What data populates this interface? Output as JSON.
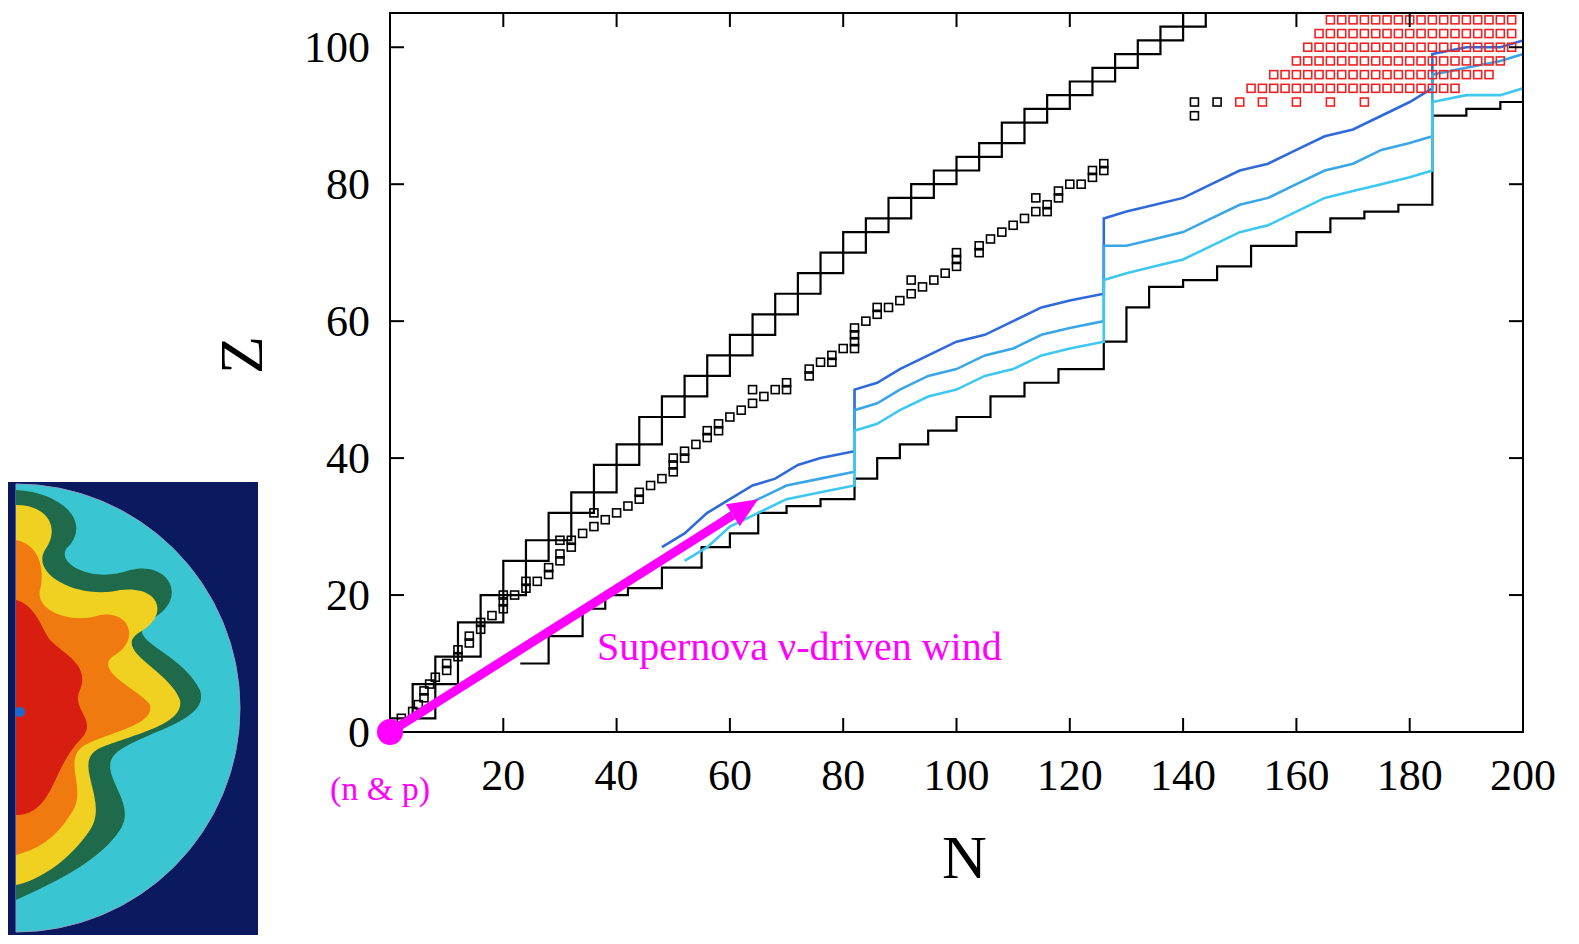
{
  "chart_data": {
    "type": "line",
    "xlabel": "N",
    "ylabel": "Z",
    "xlim": [
      0,
      200
    ],
    "ylim": [
      0,
      105
    ],
    "xticks": [
      20,
      40,
      60,
      80,
      100,
      120,
      140,
      160,
      180,
      200
    ],
    "yticks": [
      0,
      20,
      40,
      60,
      80,
      100
    ],
    "grid": false,
    "annotations": [
      {
        "text": "Supernova ν-driven wind",
        "color": "#ff00ff"
      },
      {
        "text": "(n & p)",
        "color": "#ff00ff"
      }
    ],
    "series": [
      {
        "type": "line",
        "line_style": "steps",
        "color": "#000000",
        "x": [
          0,
          4,
          8,
          12,
          16,
          20,
          24,
          28,
          32,
          36,
          40,
          44,
          48,
          52,
          56,
          60,
          64,
          68,
          72,
          76,
          80,
          84,
          88,
          92,
          96,
          100,
          104,
          108,
          112,
          116,
          120,
          124,
          128,
          132,
          136,
          140
        ],
        "values": [
          2,
          7,
          11,
          16,
          20,
          25,
          28,
          32,
          35,
          39,
          42,
          46,
          49,
          52,
          55,
          58,
          61,
          64,
          67,
          70,
          73,
          75,
          78,
          80,
          82,
          84,
          86,
          89,
          91,
          93,
          95,
          97,
          99,
          101,
          103,
          105
        ]
      },
      {
        "type": "line",
        "line_style": "steps",
        "color": "#000000",
        "x": [
          4,
          8,
          12,
          16,
          20,
          24,
          28,
          32,
          36,
          40,
          44,
          48,
          52,
          56,
          60,
          64,
          68,
          72,
          76,
          80,
          84,
          88,
          92,
          96,
          100,
          104,
          108,
          112,
          116,
          120,
          124,
          128,
          132,
          136,
          140,
          144
        ],
        "values": [
          2,
          7,
          11,
          16,
          20,
          25,
          28,
          32,
          35,
          39,
          42,
          46,
          49,
          52,
          55,
          58,
          61,
          64,
          67,
          70,
          73,
          75,
          78,
          80,
          82,
          84,
          86,
          89,
          91,
          93,
          95,
          97,
          99,
          101,
          103,
          105
        ]
      },
      {
        "type": "line",
        "line_style": "steps",
        "color": "#000000",
        "x": [
          23,
          28,
          34,
          38,
          42,
          48,
          55,
          60,
          65,
          70,
          76,
          82,
          82,
          86,
          90,
          95,
          100,
          106,
          112,
          118,
          126,
          126,
          130,
          134,
          140,
          146,
          152,
          160,
          166,
          172,
          178,
          184,
          184,
          190,
          196,
          200
        ],
        "values": [
          10,
          14,
          18,
          20,
          21,
          24,
          27,
          29,
          32,
          33,
          34,
          35,
          37,
          40,
          42,
          44,
          46,
          49,
          51,
          53,
          55,
          57,
          62,
          65,
          66,
          68,
          71,
          73,
          75,
          76,
          77,
          78,
          90,
          91,
          92,
          93
        ]
      },
      {
        "type": "line",
        "line_style": "solid",
        "color": "#2f6ad8",
        "x": [
          48,
          52,
          56,
          60,
          64,
          68,
          72,
          76,
          82,
          82,
          86,
          90,
          95,
          100,
          105,
          110,
          115,
          120,
          126,
          126,
          130,
          135,
          140,
          145,
          150,
          155,
          160,
          165,
          170,
          175,
          180,
          184,
          184,
          190,
          196,
          200
        ],
        "values": [
          27,
          29,
          32,
          34,
          36,
          37,
          39,
          40,
          41,
          50,
          51,
          53,
          55,
          57,
          58,
          60,
          62,
          63,
          64,
          75,
          76,
          77,
          78,
          80,
          82,
          83,
          85,
          87,
          88,
          90,
          92,
          94,
          99,
          100,
          100,
          101
        ]
      },
      {
        "type": "line",
        "line_style": "solid",
        "color": "#3aa6e6",
        "x": [
          50,
          55,
          60,
          65,
          70,
          76,
          82,
          82,
          86,
          90,
          95,
          100,
          105,
          110,
          115,
          120,
          126,
          126,
          130,
          135,
          140,
          145,
          150,
          155,
          160,
          165,
          170,
          175,
          180,
          184,
          184,
          190,
          196,
          200
        ],
        "values": [
          26,
          29,
          32,
          34,
          36,
          37,
          38,
          47,
          48,
          50,
          52,
          53,
          55,
          56,
          58,
          59,
          60,
          71,
          71,
          72,
          73,
          75,
          77,
          78,
          80,
          82,
          83,
          85,
          86,
          87,
          96,
          97,
          98,
          99
        ]
      },
      {
        "type": "line",
        "line_style": "solid",
        "color": "#3ec8f0",
        "x": [
          52,
          56,
          60,
          65,
          70,
          76,
          82,
          82,
          86,
          90,
          95,
          100,
          105,
          110,
          115,
          120,
          126,
          126,
          130,
          135,
          140,
          145,
          150,
          155,
          160,
          165,
          170,
          175,
          180,
          184,
          184,
          190,
          196,
          200
        ],
        "values": [
          25,
          27,
          30,
          32,
          34,
          35,
          36,
          44,
          45,
          47,
          49,
          50,
          52,
          53,
          55,
          56,
          57,
          66,
          67,
          68,
          69,
          71,
          73,
          74,
          76,
          78,
          79,
          80,
          81,
          82,
          92,
          93,
          93,
          94
        ]
      },
      {
        "type": "scatter",
        "marker": "square",
        "color": "#000000",
        "x": [
          2,
          4,
          5,
          6,
          6,
          7,
          8,
          10,
          10,
          12,
          12,
          14,
          14,
          16,
          16,
          18,
          20,
          20,
          22,
          24,
          26,
          28,
          28,
          30,
          30,
          32,
          32,
          34,
          36,
          38,
          40,
          42,
          44,
          44,
          46,
          48,
          50,
          50,
          52,
          52,
          54,
          56,
          58,
          58,
          60,
          62,
          64,
          66,
          68,
          70,
          74,
          74,
          76,
          78,
          80,
          82,
          82,
          82,
          84,
          86,
          88,
          90,
          92,
          94,
          96,
          98,
          100,
          100,
          104,
          104,
          106,
          108,
          110,
          112,
          114,
          116,
          118,
          118,
          120,
          124,
          126,
          126,
          20,
          24,
          30,
          36,
          50,
          56,
          64,
          70,
          78,
          82,
          86,
          92,
          100,
          116,
          114,
          122,
          124,
          142,
          146,
          142
        ],
        "values": [
          2,
          3,
          4,
          5,
          6,
          7,
          8,
          9,
          10,
          11,
          12,
          13,
          14,
          15,
          16,
          17,
          18,
          19,
          20,
          21,
          22,
          23,
          24,
          25,
          26,
          27,
          28,
          29,
          30,
          31,
          32,
          33,
          34,
          35,
          36,
          37,
          38,
          39,
          40,
          41,
          42,
          43,
          44,
          45,
          46,
          47,
          48,
          49,
          50,
          51,
          52,
          53,
          54,
          55,
          56,
          57,
          58,
          59,
          60,
          61,
          62,
          63,
          64,
          65,
          66,
          67,
          68,
          69,
          70,
          71,
          72,
          73,
          74,
          75,
          76,
          77,
          78,
          79,
          80,
          81,
          82,
          83,
          20,
          22,
          28,
          32,
          40,
          44,
          50,
          50,
          54,
          56,
          62,
          66,
          70,
          76,
          78,
          80,
          82,
          92,
          92,
          90
        ]
      },
      {
        "type": "scatter",
        "marker": "square",
        "color": "#ee2222",
        "x": [
          166,
          168,
          170,
          172,
          174,
          176,
          178,
          180,
          182,
          184,
          186,
          188,
          190,
          192,
          194,
          196,
          198,
          164,
          166,
          168,
          170,
          172,
          174,
          176,
          178,
          180,
          182,
          184,
          186,
          188,
          190,
          192,
          194,
          196,
          198,
          162,
          164,
          166,
          168,
          170,
          172,
          174,
          176,
          178,
          180,
          182,
          184,
          186,
          188,
          190,
          192,
          194,
          196,
          198,
          160,
          162,
          164,
          166,
          168,
          170,
          172,
          174,
          176,
          178,
          180,
          182,
          184,
          186,
          188,
          190,
          192,
          194,
          196,
          156,
          158,
          160,
          162,
          164,
          166,
          168,
          170,
          172,
          174,
          176,
          178,
          180,
          182,
          184,
          186,
          188,
          190,
          192,
          194,
          152,
          154,
          156,
          158,
          160,
          162,
          164,
          166,
          168,
          170,
          172,
          174,
          176,
          178,
          180,
          182,
          184,
          186,
          188,
          150,
          154,
          160,
          166,
          172
        ],
        "values": [
          104,
          104,
          104,
          104,
          104,
          104,
          104,
          104,
          104,
          104,
          104,
          104,
          104,
          104,
          104,
          104,
          104,
          102,
          102,
          102,
          102,
          102,
          102,
          102,
          102,
          102,
          102,
          102,
          102,
          102,
          102,
          102,
          102,
          102,
          102,
          100,
          100,
          100,
          100,
          100,
          100,
          100,
          100,
          100,
          100,
          100,
          100,
          100,
          100,
          100,
          100,
          100,
          100,
          100,
          98,
          98,
          98,
          98,
          98,
          98,
          98,
          98,
          98,
          98,
          98,
          98,
          98,
          98,
          98,
          98,
          98,
          98,
          98,
          96,
          96,
          96,
          96,
          96,
          96,
          96,
          96,
          96,
          96,
          96,
          96,
          96,
          96,
          96,
          96,
          96,
          96,
          96,
          96,
          94,
          94,
          94,
          94,
          94,
          94,
          94,
          94,
          94,
          94,
          94,
          94,
          94,
          94,
          94,
          94,
          94,
          94,
          94,
          92,
          92,
          92,
          92,
          92
        ]
      },
      {
        "type": "arrow",
        "color": "#ff00ff",
        "x": [
          0,
          65
        ],
        "values": [
          0,
          34
        ]
      }
    ]
  }
}
